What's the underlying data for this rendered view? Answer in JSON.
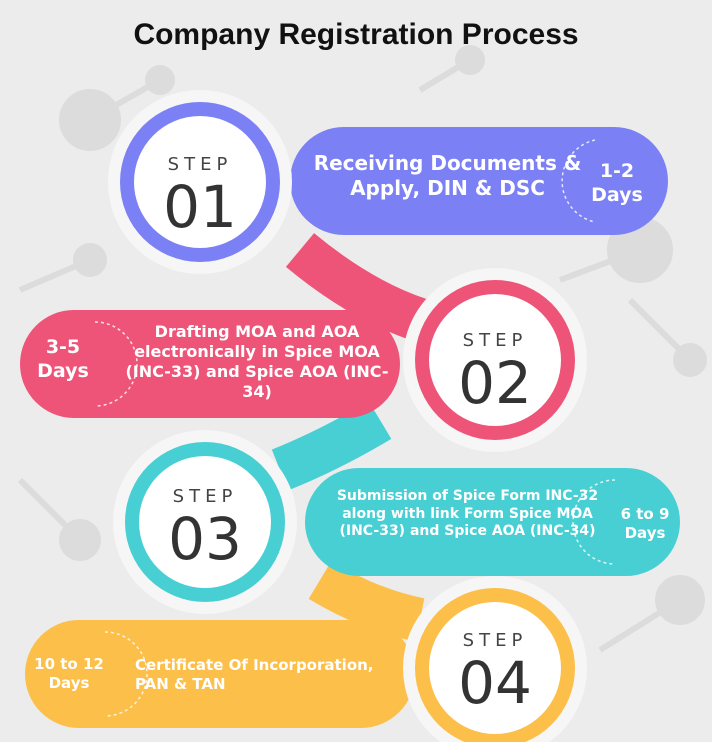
{
  "title": "Company Registration Process",
  "colors": {
    "step1": "#7b80f4",
    "step2": "#ee5477",
    "step3": "#48cfd3",
    "step4": "#fcbf49",
    "background": "#ececec"
  },
  "steps": [
    {
      "step_label": "STEP",
      "number": "01",
      "description": "Receiving Documents & Apply, DIN & DSC",
      "duration": "1-2 Days"
    },
    {
      "step_label": "STEP",
      "number": "02",
      "description": "Drafting MOA and AOA electronically in Spice MOA (INC-33) and Spice AOA (INC-34)",
      "duration": "3-5 Days"
    },
    {
      "step_label": "STEP",
      "number": "03",
      "description": "Submission of Spice Form INC-32 along with link Form Spice MOA (INC-33) and Spice AOA (INC-34)",
      "duration": "6 to 9 Days"
    },
    {
      "step_label": "STEP",
      "number": "04",
      "description": "Certificate Of Incorporation, PAN & TAN",
      "duration": "10 to 12 Days"
    }
  ]
}
